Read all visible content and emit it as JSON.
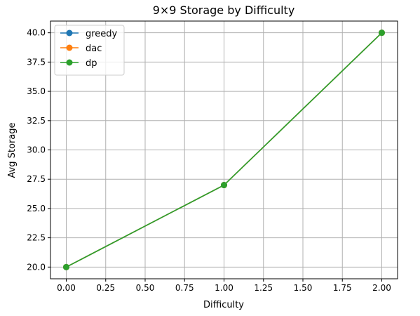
{
  "chart_data": {
    "type": "line",
    "title": "9×9 Storage by Difficulty",
    "xlabel": "Difficulty",
    "ylabel": "Avg Storage",
    "x": [
      0,
      1,
      2
    ],
    "xlim": [
      -0.1,
      2.1
    ],
    "ylim": [
      19,
      41
    ],
    "xticks": [
      0.0,
      0.25,
      0.5,
      0.75,
      1.0,
      1.25,
      1.5,
      1.75,
      2.0
    ],
    "yticks": [
      20.0,
      22.5,
      25.0,
      27.5,
      30.0,
      32.5,
      35.0,
      37.5,
      40.0
    ],
    "xtick_labels": [
      "0.00",
      "0.25",
      "0.50",
      "0.75",
      "1.00",
      "1.25",
      "1.50",
      "1.75",
      "2.00"
    ],
    "ytick_labels": [
      "20.0",
      "22.5",
      "25.0",
      "27.5",
      "30.0",
      "32.5",
      "35.0",
      "37.5",
      "40.0"
    ],
    "grid": true,
    "legend_position": "top-left",
    "series": [
      {
        "name": "greedy",
        "values": [
          20,
          27,
          40
        ],
        "color": "#1f77b4"
      },
      {
        "name": "dac",
        "values": [
          20,
          27,
          40
        ],
        "color": "#ff7f0e"
      },
      {
        "name": "dp",
        "values": [
          20,
          27,
          40
        ],
        "color": "#2ca02c"
      }
    ]
  }
}
